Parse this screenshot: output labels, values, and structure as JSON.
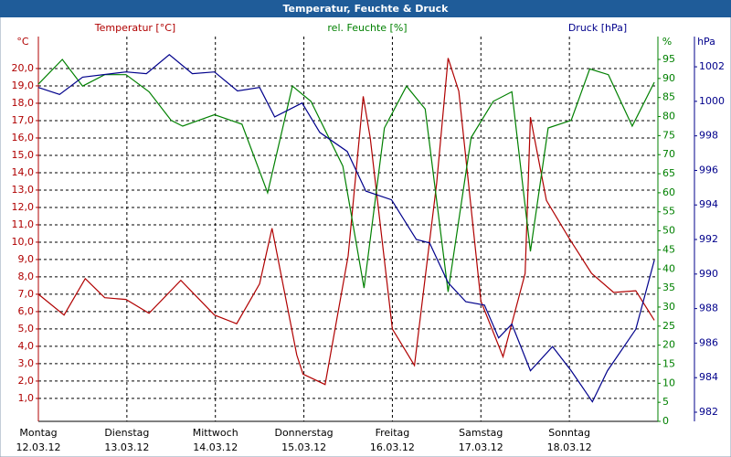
{
  "chart_data": {
    "type": "line",
    "title": "Temperatur, Feuchte & Druck",
    "xlim": [
      0,
      7
    ],
    "xticks": [
      {
        "value": 0,
        "label": "Montag",
        "date": "12.03.12"
      },
      {
        "value": 1,
        "label": "Dienstag",
        "date": "13.03.12"
      },
      {
        "value": 2,
        "label": "Mittwoch",
        "date": "14.03.12"
      },
      {
        "value": 3,
        "label": "Donnerstag",
        "date": "15.03.12"
      },
      {
        "value": 4,
        "label": "Freitag",
        "date": "16.03.12"
      },
      {
        "value": 5,
        "label": "Samstag",
        "date": "17.03.12"
      },
      {
        "value": 6,
        "label": "Sonntag",
        "date": "18.03.12"
      }
    ],
    "ylim": [
      -0.32,
      21.84
    ],
    "yticks": [
      {
        "value": 1,
        "label": "1,0"
      },
      {
        "value": 2,
        "label": "2,0"
      },
      {
        "value": 3,
        "label": "3,0"
      },
      {
        "value": 4,
        "label": "4,0"
      },
      {
        "value": 5,
        "label": "5,0"
      },
      {
        "value": 6,
        "label": "6,0"
      },
      {
        "value": 7,
        "label": "7,0"
      },
      {
        "value": 8,
        "label": "8,0"
      },
      {
        "value": 9,
        "label": "9,0"
      },
      {
        "value": 10,
        "label": "10,0"
      },
      {
        "value": 11,
        "label": "11,0"
      },
      {
        "value": 12,
        "label": "12,0"
      },
      {
        "value": 13,
        "label": "13,0"
      },
      {
        "value": 14,
        "label": "14,0"
      },
      {
        "value": 15,
        "label": "15,0"
      },
      {
        "value": 16,
        "label": "16,0"
      },
      {
        "value": 17,
        "label": "17,0"
      },
      {
        "value": 18,
        "label": "18,0"
      },
      {
        "value": 19,
        "label": "19,0"
      },
      {
        "value": 20,
        "label": "20,0"
      }
    ],
    "y2lim": [
      0,
      101
    ],
    "y2ticks": [
      0,
      5,
      10,
      15,
      20,
      25,
      30,
      35,
      40,
      45,
      50,
      55,
      60,
      65,
      70,
      75,
      80,
      85,
      90,
      95
    ],
    "y3lim": [
      981.47,
      1003.75
    ],
    "y3ticks": [
      982,
      984,
      986,
      988,
      990,
      992,
      994,
      996,
      998,
      1000,
      1002
    ],
    "grid": true,
    "series": [
      {
        "name": "Temperatur [°C]",
        "unit": "°C",
        "axis": "y",
        "color": "#b00000",
        "x": [
          0,
          0.29,
          0.53,
          0.75,
          0.99,
          1.25,
          1.61,
          1.99,
          2.24,
          2.5,
          2.64,
          2.92,
          2.99,
          3.24,
          3.5,
          3.67,
          3.75,
          4.0,
          4.25,
          4.5,
          4.63,
          4.75,
          5.0,
          5.25,
          5.5,
          5.56,
          5.74,
          6.0,
          6.25,
          6.5,
          6.75,
          6.96
        ],
        "values": [
          7.0,
          5.8,
          7.9,
          6.8,
          6.7,
          5.9,
          7.8,
          5.8,
          5.3,
          7.6,
          10.8,
          3.5,
          2.4,
          1.8,
          9.2,
          18.4,
          16.0,
          5.0,
          2.9,
          13.4,
          20.6,
          18.7,
          6.6,
          3.4,
          8.2,
          17.2,
          12.4,
          10.2,
          8.2,
          7.1,
          7.2,
          5.5
        ]
      },
      {
        "name": "rel. Feuchte [%]",
        "unit": "%",
        "axis": "y2",
        "color": "#008000",
        "x": [
          0,
          0.27,
          0.5,
          0.75,
          0.99,
          1.25,
          1.5,
          1.63,
          1.99,
          2.3,
          2.59,
          2.87,
          3.08,
          3.44,
          3.68,
          3.91,
          4.16,
          4.37,
          4.63,
          4.89,
          5.14,
          5.35,
          5.56,
          5.76,
          6.02,
          6.23,
          6.44,
          6.71,
          6.96
        ],
        "values": [
          88.5,
          95,
          88,
          91,
          91,
          86.5,
          79,
          77.5,
          80.5,
          78,
          60,
          88,
          84,
          67,
          35,
          77,
          88,
          82,
          34,
          74.5,
          84,
          86.5,
          44.6,
          77,
          79,
          92.5,
          91,
          77.5,
          89
        ]
      },
      {
        "name": "Druck [hPa]",
        "unit": "hPa",
        "axis": "y3",
        "color": "#00008b",
        "x": [
          0,
          0.24,
          0.5,
          0.99,
          1.22,
          1.48,
          1.74,
          1.99,
          2.25,
          2.5,
          2.67,
          2.98,
          3.18,
          3.49,
          3.7,
          3.99,
          4.27,
          4.42,
          4.63,
          4.83,
          5.04,
          5.2,
          5.35,
          5.56,
          5.81,
          6.02,
          6.26,
          6.43,
          6.75,
          6.96
        ],
        "values": [
          1000.8,
          1000.4,
          1001.4,
          1001.7,
          1001.6,
          1002.7,
          1001.6,
          1001.7,
          1000.6,
          1000.8,
          999.1,
          999.9,
          998.2,
          997.1,
          994.8,
          994.3,
          992.0,
          991.8,
          989.5,
          988.4,
          988.2,
          986.3,
          987.1,
          984.4,
          985.8,
          984.4,
          982.6,
          984.4,
          986.8,
          990.8
        ]
      }
    ]
  }
}
